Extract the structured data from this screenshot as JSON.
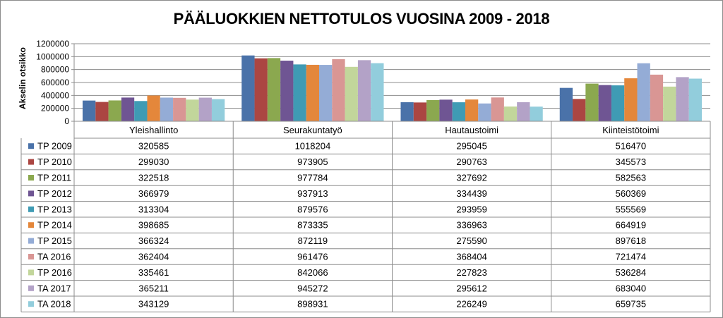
{
  "chart_data": {
    "type": "bar",
    "title": "PÄÄLUOKKIEN NETTOTULOS VUOSINA 2009 - 2018",
    "ylabel": "Akselin otsikko",
    "xlabel": "",
    "ylim": [
      0,
      1200000
    ],
    "yticks": [
      "0",
      "200000",
      "400000",
      "600000",
      "800000",
      "1000000",
      "1200000"
    ],
    "grid": true,
    "legend": "data-table",
    "categories": [
      "Yleishallinto",
      "Seurakuntatyö",
      "Hautaustoimi",
      "Kiinteistötoimi"
    ],
    "series": [
      {
        "name": "TP 2009",
        "color": "#4a72a9",
        "values": [
          320585,
          1018204,
          295045,
          516470
        ]
      },
      {
        "name": "TP 2010",
        "color": "#ab4642",
        "values": [
          299030,
          973905,
          290763,
          345573
        ]
      },
      {
        "name": "TP 2011",
        "color": "#8ba84f",
        "values": [
          322518,
          977784,
          327692,
          582563
        ]
      },
      {
        "name": "TP 2012",
        "color": "#6f5593",
        "values": [
          366979,
          937913,
          334439,
          560369
        ]
      },
      {
        "name": "TP 2013",
        "color": "#3f9bb4",
        "values": [
          313304,
          879576,
          293959,
          555569
        ]
      },
      {
        "name": "TP 2014",
        "color": "#e4873b",
        "values": [
          398685,
          873335,
          336963,
          664919
        ]
      },
      {
        "name": "TP 2015",
        "color": "#94acd6",
        "values": [
          366324,
          872119,
          275590,
          897618
        ]
      },
      {
        "name": "TA 2016",
        "color": "#d99694",
        "values": [
          362404,
          961476,
          368404,
          721474
        ]
      },
      {
        "name": "TP 2016",
        "color": "#c2d69b",
        "values": [
          335461,
          842066,
          227823,
          536284
        ]
      },
      {
        "name": "TA 2017",
        "color": "#b3a2c7",
        "values": [
          365211,
          945272,
          295612,
          683040
        ]
      },
      {
        "name": "TA 2018",
        "color": "#92cddc",
        "values": [
          343129,
          898931,
          226249,
          659735
        ]
      }
    ]
  }
}
